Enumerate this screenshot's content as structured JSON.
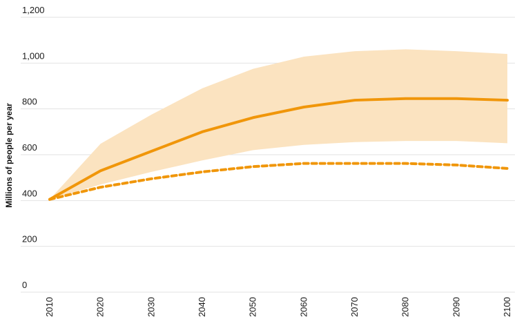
{
  "chart_data": {
    "type": "line",
    "title": "",
    "xlabel": "",
    "ylabel": "Millions of people per year",
    "x": [
      2010,
      2020,
      2030,
      2040,
      2050,
      2060,
      2070,
      2080,
      2090,
      2100
    ],
    "xlim": [
      2010,
      2100
    ],
    "ylim": [
      0,
      1200
    ],
    "yticks": [
      0,
      200,
      400,
      600,
      800,
      1000,
      1200
    ],
    "ytick_labels": [
      "0",
      "200",
      "400",
      "600",
      "800",
      "1,000",
      "1,200"
    ],
    "xtick_labels": [
      "2010",
      "2020",
      "2030",
      "2040",
      "2050",
      "2060",
      "2070",
      "2080",
      "2090",
      "2100"
    ],
    "grid": true,
    "legend": "none",
    "series": [
      {
        "style": "solid",
        "color": "#f0960a",
        "values": [
          405,
          530,
          615,
          700,
          762,
          808,
          838,
          845,
          845,
          838
        ]
      },
      {
        "style": "dashed",
        "color": "#f0960a",
        "values": [
          405,
          458,
          495,
          525,
          548,
          562,
          562,
          562,
          555,
          540
        ]
      }
    ],
    "band": {
      "color": "#fbe3c0",
      "lower": [
        405,
        470,
        525,
        575,
        620,
        643,
        655,
        660,
        660,
        650
      ],
      "upper": [
        405,
        648,
        775,
        890,
        975,
        1028,
        1052,
        1060,
        1052,
        1040
      ]
    }
  }
}
